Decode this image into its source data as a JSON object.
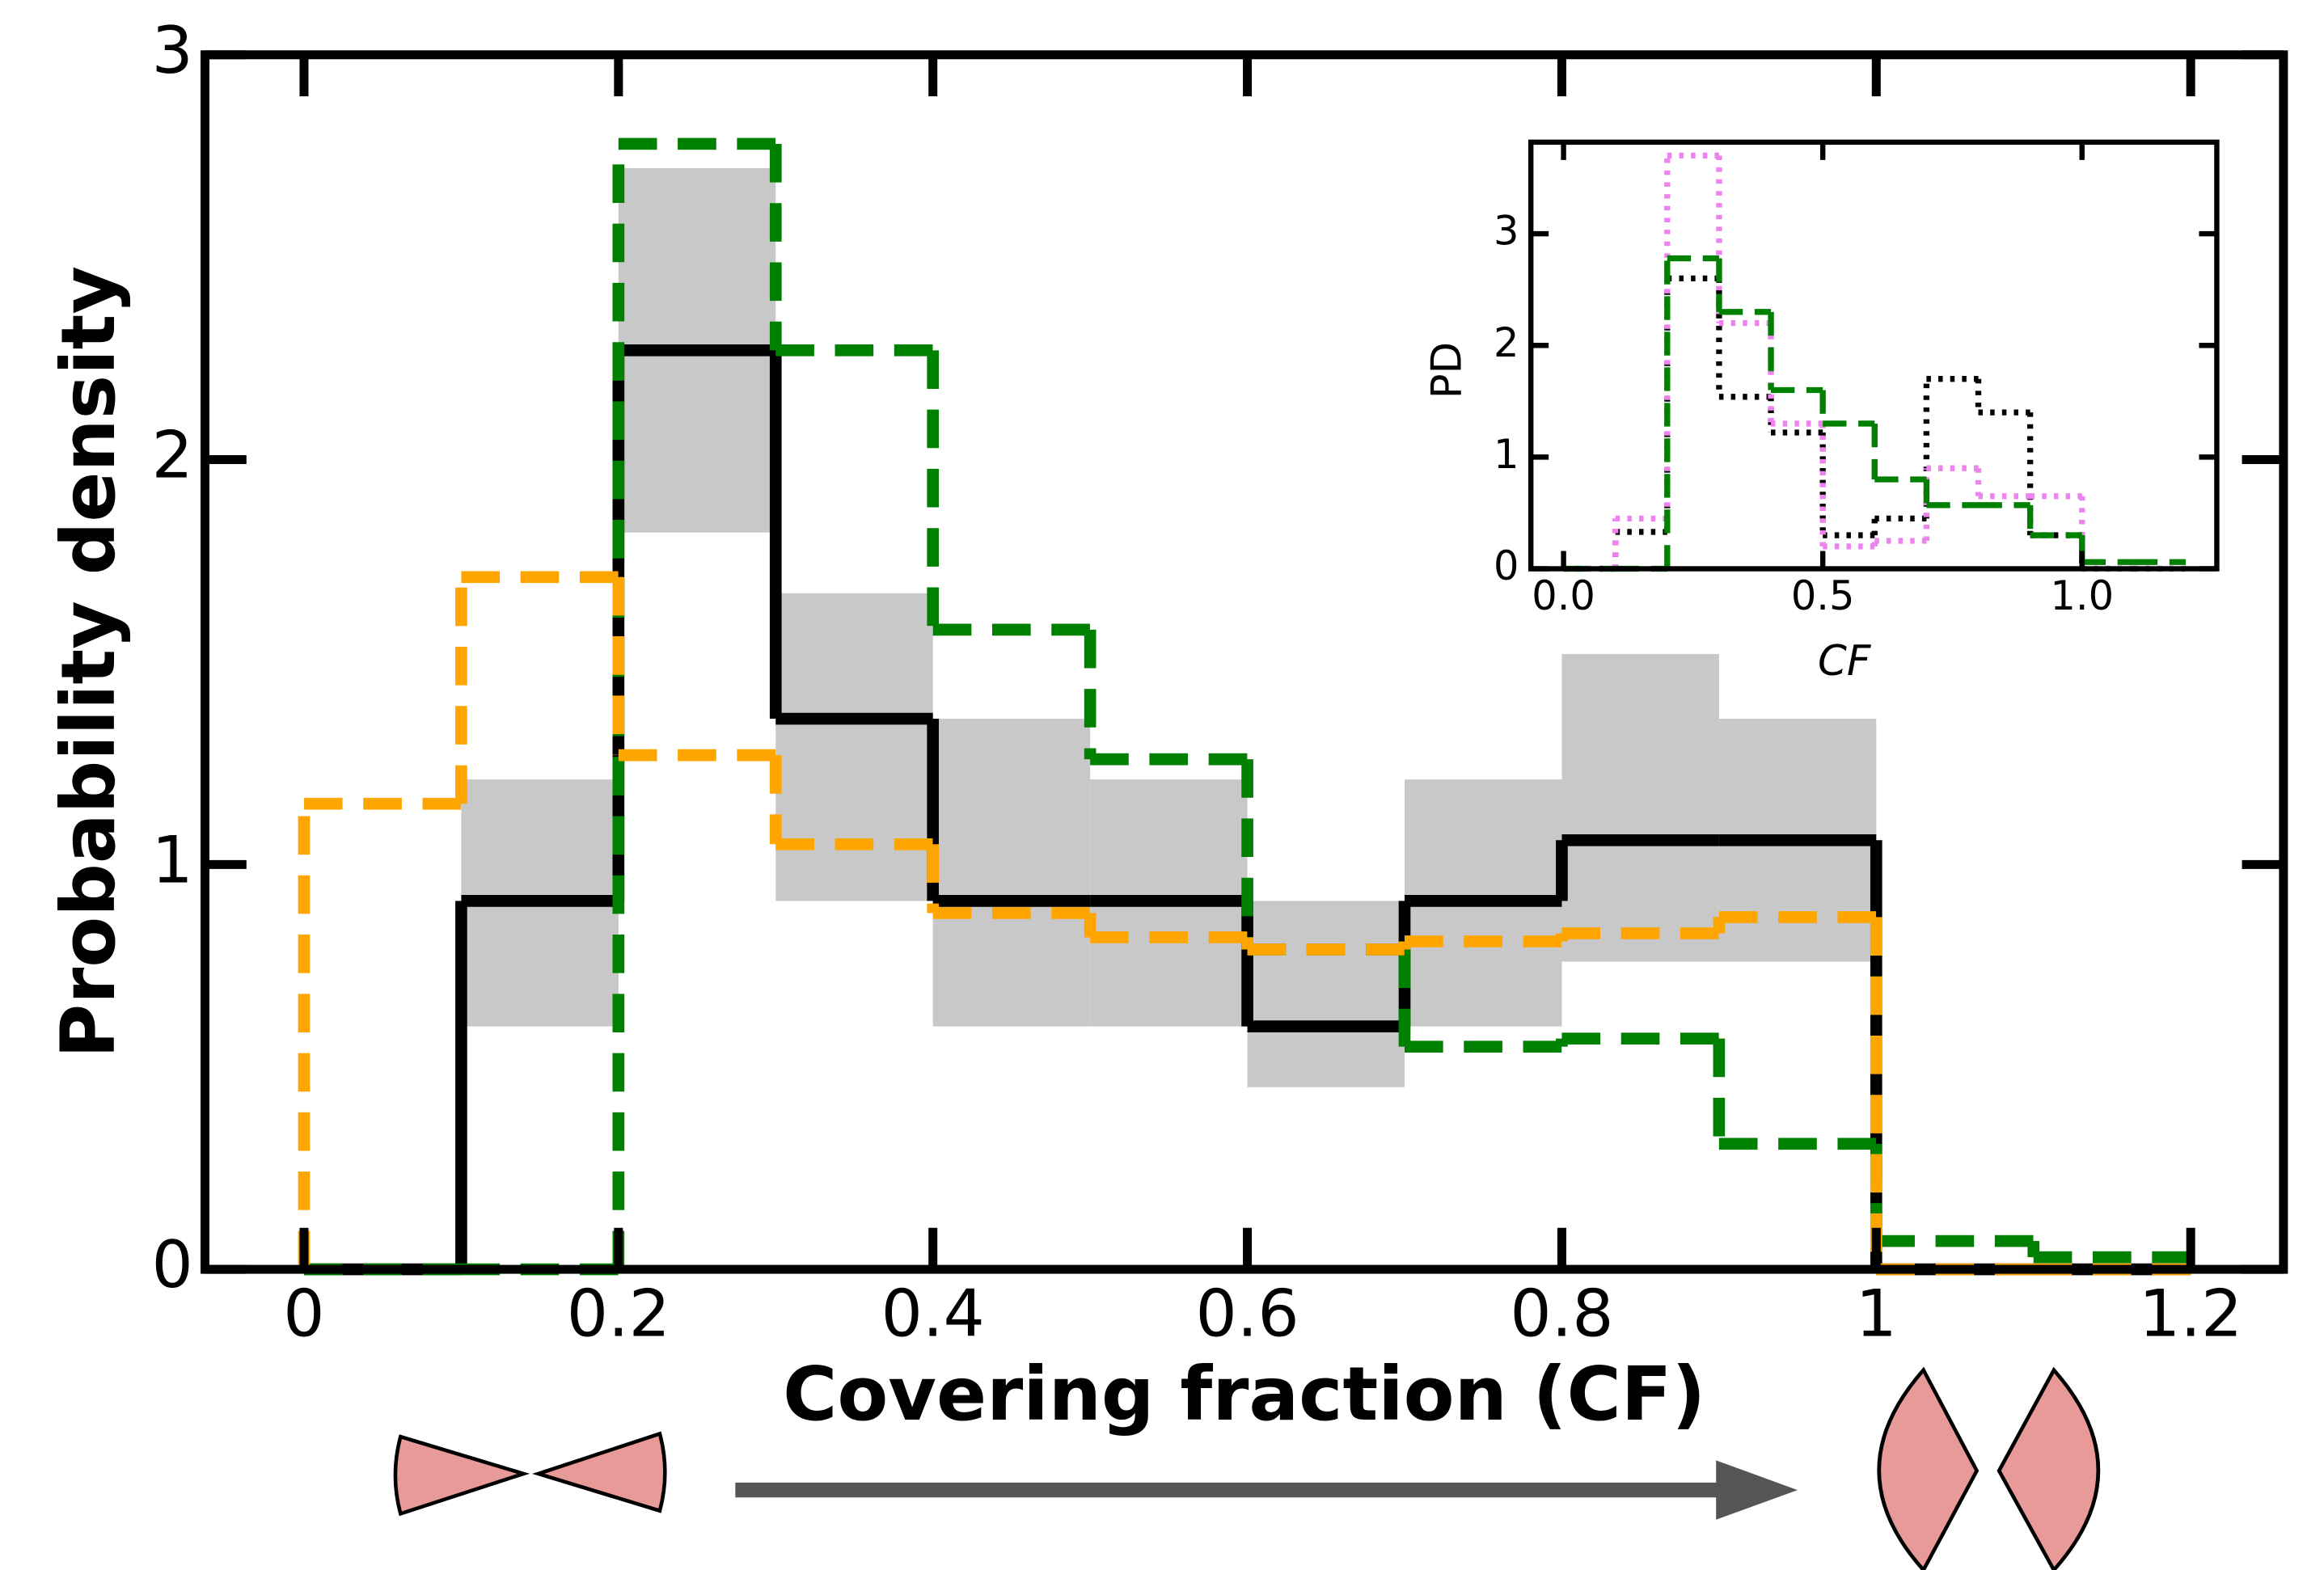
{
  "chart_data": [
    {
      "type": "histogram",
      "xlabel": "Covering fraction (CF)",
      "ylabel": "Probability density",
      "bins": [
        0,
        0.1,
        0.2,
        0.3,
        0.4,
        0.5,
        0.6,
        0.7,
        0.8,
        0.9,
        1.0,
        1.1,
        1.2
      ],
      "xlim": [
        -0.063,
        1.259
      ],
      "ylim": [
        0,
        3
      ],
      "xticks": [
        0,
        0.2,
        0.4,
        0.6,
        0.8,
        1,
        1.2
      ],
      "yticks": [
        0,
        1,
        2,
        3
      ],
      "band": {
        "color": "#c8c8c8",
        "low": [
          null,
          0.6,
          1.82,
          0.91,
          0.6,
          0.6,
          0.45,
          0.6,
          0.76,
          0.76,
          null,
          null
        ],
        "high": [
          null,
          1.21,
          2.72,
          1.67,
          1.36,
          1.21,
          0.91,
          1.21,
          1.52,
          1.36,
          null,
          null
        ]
      },
      "series": [
        {
          "color": "#000000",
          "style": "solid",
          "values": [
            0,
            0.91,
            2.27,
            1.36,
            0.91,
            0.91,
            0.6,
            0.91,
            1.06,
            1.06,
            0,
            0
          ]
        },
        {
          "color": "#008000",
          "style": "dashed",
          "values": [
            0,
            0,
            2.78,
            2.27,
            1.58,
            1.26,
            0.79,
            0.55,
            0.57,
            0.31,
            0.07,
            0.03
          ]
        },
        {
          "color": "#ffa500",
          "style": "dashed",
          "values": [
            1.15,
            1.71,
            1.27,
            1.05,
            0.88,
            0.82,
            0.79,
            0.81,
            0.83,
            0.87,
            0,
            0
          ]
        }
      ]
    },
    {
      "type": "histogram",
      "xlabel": "CF",
      "ylabel": "PD",
      "bins": [
        0,
        0.1,
        0.2,
        0.3,
        0.4,
        0.5,
        0.6,
        0.7,
        0.8,
        0.9,
        1.0,
        1.1,
        1.2
      ],
      "xlim": [
        -0.063,
        1.26
      ],
      "ylim": [
        0,
        3.82
      ],
      "xticks": [
        {
          "value": 0,
          "label": "0.0"
        },
        0.5,
        {
          "value": 1,
          "label": "1.0"
        }
      ],
      "yticks": [
        0,
        1,
        2,
        3
      ],
      "series": [
        {
          "color": "#000000",
          "style": "dotted",
          "values": [
            0,
            0.33,
            2.6,
            1.54,
            1.22,
            0.3,
            0.45,
            1.7,
            1.4,
            0.3,
            0,
            0
          ]
        },
        {
          "color": "#ee82ee",
          "style": "dotted",
          "values": [
            0,
            0.45,
            3.7,
            2.2,
            1.3,
            0.2,
            0.25,
            0.9,
            0.65,
            0.65,
            0,
            0
          ]
        },
        {
          "color": "#008000",
          "style": "dashed",
          "values": [
            0,
            0,
            2.78,
            2.3,
            1.6,
            1.3,
            0.8,
            0.57,
            0.57,
            0.3,
            0.06,
            0.06
          ]
        }
      ]
    }
  ]
}
